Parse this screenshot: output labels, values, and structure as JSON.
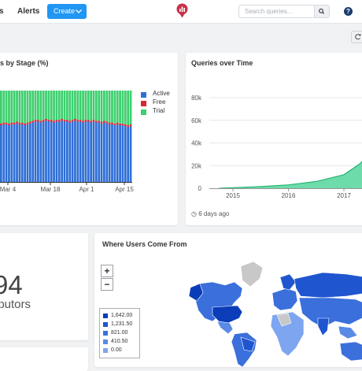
{
  "header": {
    "nav_partial": "s",
    "nav_alerts": "Alerts",
    "create_label": "Create",
    "search_placeholder": "Search queries..."
  },
  "stage_chart": {
    "title": "s by Stage (%)",
    "x_ticks": [
      "Mar 4",
      "Mar 18",
      "Apr 1",
      "Apr 15"
    ],
    "legend": [
      {
        "name": "Active",
        "color": "#2f6fd6"
      },
      {
        "name": "Free",
        "color": "#d62738"
      },
      {
        "name": "Trial",
        "color": "#3ecf6e"
      }
    ]
  },
  "queries_chart": {
    "title": "Queries over Time",
    "y_ticks": [
      "80k",
      "60k",
      "40k",
      "20k",
      "0"
    ],
    "x_ticks": [
      "2015",
      "2016",
      "2017"
    ],
    "updated": "6 days ago"
  },
  "counter": {
    "value": "94",
    "label": "ibutors"
  },
  "map": {
    "title": "Where Users Come From",
    "zoom_in": "+",
    "zoom_out": "−",
    "legend": [
      {
        "label": "1,642.00",
        "color": "#0b3db8"
      },
      {
        "label": "1,231.50",
        "color": "#1f55cf"
      },
      {
        "label": "821.00",
        "color": "#3a6fdc"
      },
      {
        "label": "410.50",
        "color": "#5a8ae6"
      },
      {
        "label": "0.00",
        "color": "#7ea5ef"
      }
    ]
  },
  "chart_data": [
    {
      "type": "bar",
      "title": "s by Stage (%)",
      "x_ticks": [
        "Mar 4",
        "Mar 18",
        "Apr 1",
        "Apr 15"
      ],
      "series": [
        {
          "name": "Active",
          "values": [
            62,
            63,
            63,
            62,
            63,
            63,
            64,
            63,
            63,
            62,
            63,
            64,
            65,
            66,
            66,
            65,
            66,
            67,
            66,
            66,
            65,
            66,
            66,
            67,
            66,
            66,
            65,
            66,
            67,
            66,
            66,
            65,
            66,
            66,
            65,
            66,
            65,
            65,
            64,
            65,
            64,
            63,
            63,
            62,
            63,
            62,
            62,
            61,
            60,
            61
          ]
        },
        {
          "name": "Free",
          "values": [
            2,
            2,
            2,
            2,
            2,
            2,
            2,
            2,
            2,
            2,
            2,
            2,
            2,
            2,
            2,
            2,
            2,
            2,
            2,
            2,
            2,
            2,
            2,
            2,
            2,
            2,
            2,
            2,
            2,
            2,
            2,
            2,
            2,
            2,
            2,
            2,
            2,
            2,
            2,
            2,
            2,
            2,
            2,
            2,
            2,
            2,
            2,
            2,
            2,
            2
          ]
        },
        {
          "name": "Trial",
          "values": [
            36,
            35,
            35,
            36,
            35,
            35,
            34,
            35,
            35,
            36,
            35,
            34,
            33,
            32,
            32,
            33,
            32,
            31,
            32,
            32,
            33,
            32,
            32,
            31,
            32,
            32,
            33,
            32,
            31,
            32,
            32,
            33,
            32,
            32,
            33,
            32,
            33,
            33,
            34,
            33,
            34,
            35,
            35,
            36,
            35,
            36,
            36,
            37,
            38,
            37
          ]
        }
      ],
      "stacked": true,
      "legend_position": "right"
    },
    {
      "type": "area",
      "title": "Queries over Time",
      "x": [
        2014.75,
        2015,
        2015.5,
        2016,
        2016.5,
        2017,
        2017.3,
        2017.5
      ],
      "y": [
        0,
        500,
        1500,
        3000,
        6000,
        12000,
        22000,
        35000
      ],
      "x_ticks": [
        "2015",
        "2016",
        "2017"
      ],
      "y_ticks": [
        "80k",
        "60k",
        "40k",
        "20k",
        "0"
      ],
      "ylim": [
        0,
        90000
      ],
      "color": "#3ecf8e",
      "grid": true
    }
  ]
}
